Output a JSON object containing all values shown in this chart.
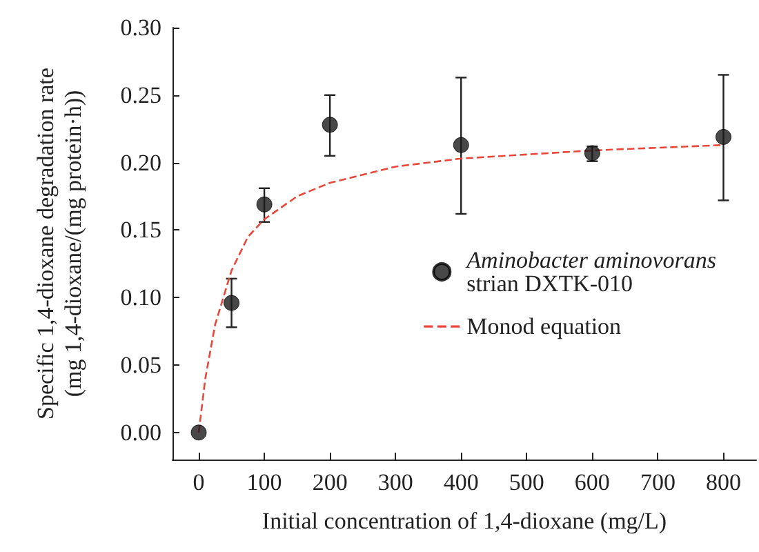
{
  "chart_data": {
    "type": "scatter",
    "xlabel": "Initial concentration of 1,4-dioxane (mg/L)",
    "ylabel": "Specific 1,4-dioxane degradation rate\n(mg 1,4-dioxane/(mg protein·h))",
    "xlim": [
      -40,
      850
    ],
    "xticks": [
      0,
      100,
      200,
      300,
      400,
      500,
      600,
      700,
      800
    ],
    "ylim": [
      -0.02,
      0.3
    ],
    "yticks": [
      {
        "value": 0,
        "label": "0.00"
      },
      {
        "value": 0.05,
        "label": "0.05"
      },
      {
        "value": 0.1,
        "label": "0.10"
      },
      {
        "value": 0.15,
        "label": "0.15"
      },
      {
        "value": 0.2,
        "label": "0.20"
      },
      {
        "value": 0.25,
        "label": "0.25"
      },
      {
        "value": 0.3,
        "label": "0.30"
      }
    ],
    "grid": false,
    "legend": "right",
    "series": [
      {
        "name": "Aminobacter aminovorans\nstrian DXTK-010",
        "marker": "circle",
        "color": "#1a1a1a",
        "x": [
          0,
          50,
          100,
          200,
          400,
          600,
          800
        ],
        "values": [
          0,
          0.096,
          0.169,
          0.228,
          0.213,
          0.207,
          0.219
        ],
        "errors": [
          null,
          [
            0.078,
            0.114
          ],
          [
            0.156,
            0.181
          ],
          [
            0.205,
            0.25
          ],
          [
            0.162,
            0.263
          ],
          [
            0.201,
            0.212
          ],
          [
            0.172,
            0.265
          ]
        ]
      },
      {
        "name": "Monod equation",
        "type": "line",
        "marker": "none",
        "line_style": "dashed",
        "color": "#e8473a",
        "x": [
          0,
          10,
          25,
          50,
          75,
          100,
          150,
          200,
          300,
          400,
          500,
          600,
          700,
          800
        ],
        "values": [
          0,
          0.04,
          0.08,
          0.12,
          0.145,
          0.158,
          0.175,
          0.185,
          0.197,
          0.203,
          0.206,
          0.209,
          0.211,
          0.213
        ]
      }
    ]
  }
}
